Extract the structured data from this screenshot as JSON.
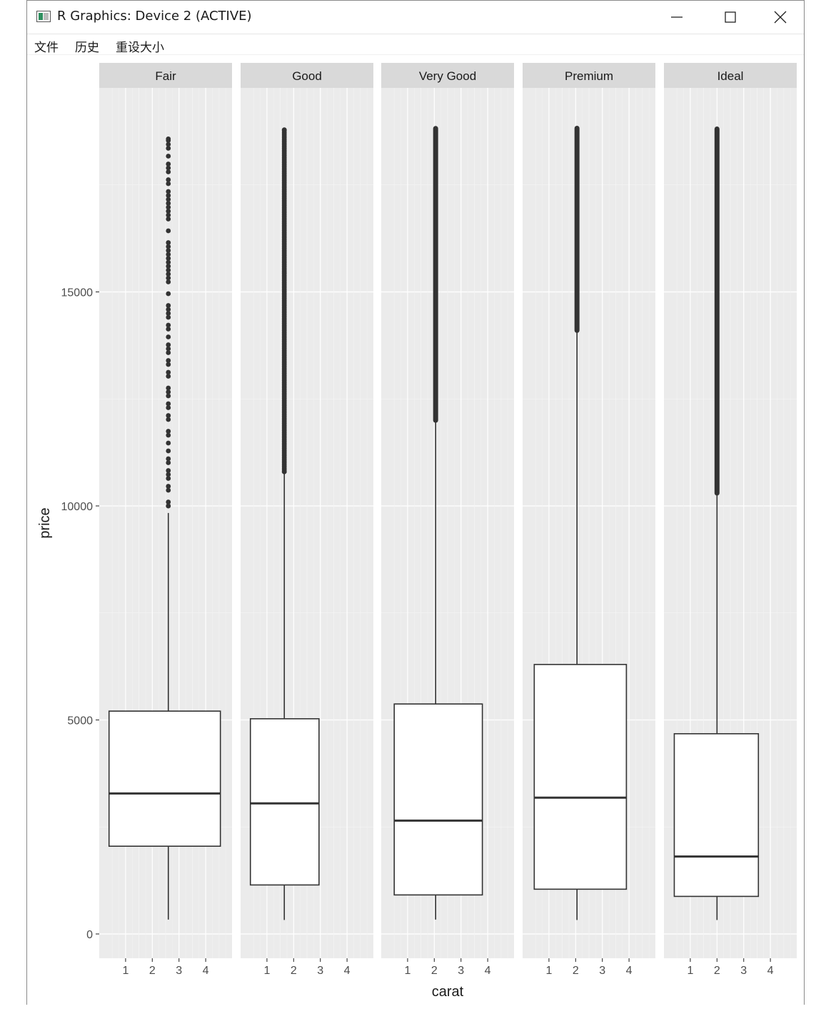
{
  "window": {
    "title": "R Graphics: Device 2 (ACTIVE)",
    "icons": [
      "minimize-icon",
      "maximize-icon",
      "close-icon"
    ]
  },
  "menu": [
    "文件",
    "历史",
    "重设大小"
  ],
  "chart_data": {
    "type": "boxplot",
    "xlabel": "carat",
    "ylabel": "price",
    "ylim": [
      0,
      20000
    ],
    "y_ticks": [
      0,
      5000,
      10000,
      15000
    ],
    "x_ticks": [
      1,
      2,
      3,
      4
    ],
    "xlim": [
      0.2,
      5.01
    ],
    "grid": true,
    "panel_background": "#ebebeb",
    "strip_background": "#d9d9d9",
    "panels": [
      {
        "name": "Fair",
        "x_center": 2.6,
        "x_left": 0.38,
        "x_right": 4.55,
        "whisker_low": 337,
        "q1": 2050,
        "median": 3282,
        "q3": 5206,
        "whisker_high": 9836,
        "outliers_min": 10000,
        "outliers_max": 18574,
        "outlier_style": "sparse"
      },
      {
        "name": "Good",
        "x_center": 1.65,
        "x_left": 0.38,
        "x_right": 2.95,
        "whisker_low": 327,
        "q1": 1145,
        "median": 3050,
        "q3": 5028,
        "whisker_high": 10800,
        "outliers_min": 10800,
        "outliers_max": 18788,
        "outlier_style": "dense"
      },
      {
        "name": "Very Good",
        "x_center": 2.05,
        "x_left": 0.5,
        "x_right": 3.8,
        "whisker_low": 336,
        "q1": 912,
        "median": 2648,
        "q3": 5373,
        "whisker_high": 12000,
        "outliers_min": 12000,
        "outliers_max": 18818,
        "outlier_style": "solid"
      },
      {
        "name": "Premium",
        "x_center": 2.05,
        "x_left": 0.45,
        "x_right": 3.9,
        "whisker_low": 326,
        "q1": 1046,
        "median": 3185,
        "q3": 6296,
        "whisker_high": 14100,
        "outliers_min": 14100,
        "outliers_max": 18823,
        "outlier_style": "solid"
      },
      {
        "name": "Ideal",
        "x_center": 2.0,
        "x_left": 0.4,
        "x_right": 3.55,
        "whisker_low": 326,
        "q1": 878,
        "median": 1810,
        "q3": 4678,
        "whisker_high": 10300,
        "outliers_min": 10300,
        "outliers_max": 18806,
        "outlier_style": "solid"
      }
    ]
  }
}
